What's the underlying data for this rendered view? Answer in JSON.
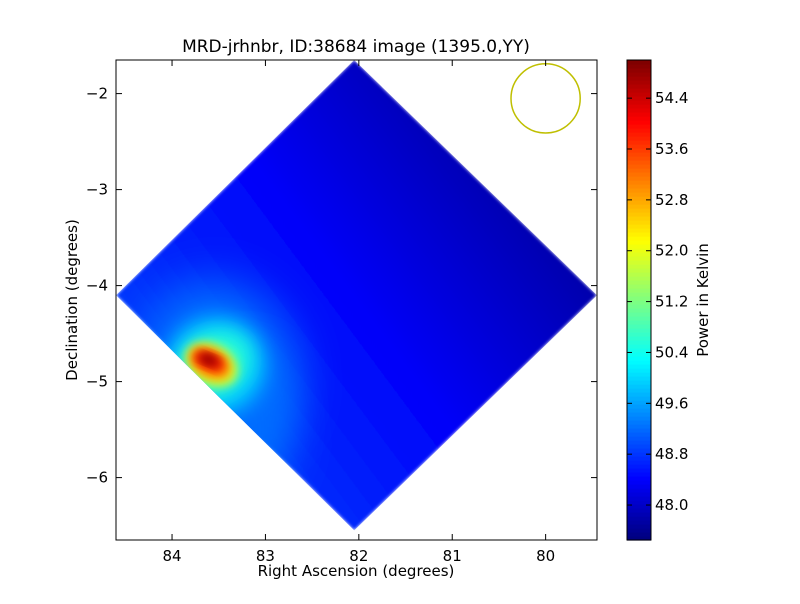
{
  "chart_data": {
    "type": "heatmap",
    "title": "MRD-jrhnbr, ID:38684 image (1395.0,YY)",
    "xlabel": "Right Ascension (degrees)",
    "ylabel": "Declination (degrees)",
    "xlim": [
      84.6,
      79.45
    ],
    "ylim": [
      -6.65,
      -1.65
    ],
    "x_ticks": [
      84,
      83,
      82,
      81,
      80
    ],
    "x_tick_labels": [
      "84",
      "83",
      "82",
      "81",
      "80"
    ],
    "y_ticks": [
      -2,
      -3,
      -4,
      -5,
      -6
    ],
    "y_tick_labels": [
      "−2",
      "−3",
      "−4",
      "−5",
      "−6"
    ],
    "colorbar": {
      "label": "Power in Kelvin",
      "colormap": "jet",
      "vmin": 47.45,
      "vmax": 55.0,
      "ticks": [
        48.0,
        48.8,
        49.6,
        50.4,
        51.2,
        52.0,
        52.8,
        53.6,
        54.4
      ],
      "tick_labels": [
        "48.0",
        "48.8",
        "49.6",
        "50.4",
        "51.2",
        "52.0",
        "52.8",
        "53.6",
        "54.4"
      ]
    },
    "field": {
      "shape": "diamond",
      "center": [
        82.05,
        -4.1
      ],
      "corners": [
        [
          82.05,
          -1.65
        ],
        [
          79.45,
          -4.1
        ],
        [
          82.05,
          -6.55
        ],
        [
          84.6,
          -4.1
        ]
      ],
      "background_gradient": {
        "high_ra_value": 48.9,
        "low_ra_value": 47.5
      },
      "hot_spot": {
        "ra": 83.6,
        "dec": -4.78,
        "peak_value": 55.0
      }
    },
    "beam_circle": {
      "ra": 80.0,
      "dec": -2.05,
      "radius_deg": 0.37,
      "color": "#bfbf00"
    },
    "colors": {
      "axis": "#000000",
      "background": "#ffffff"
    }
  }
}
